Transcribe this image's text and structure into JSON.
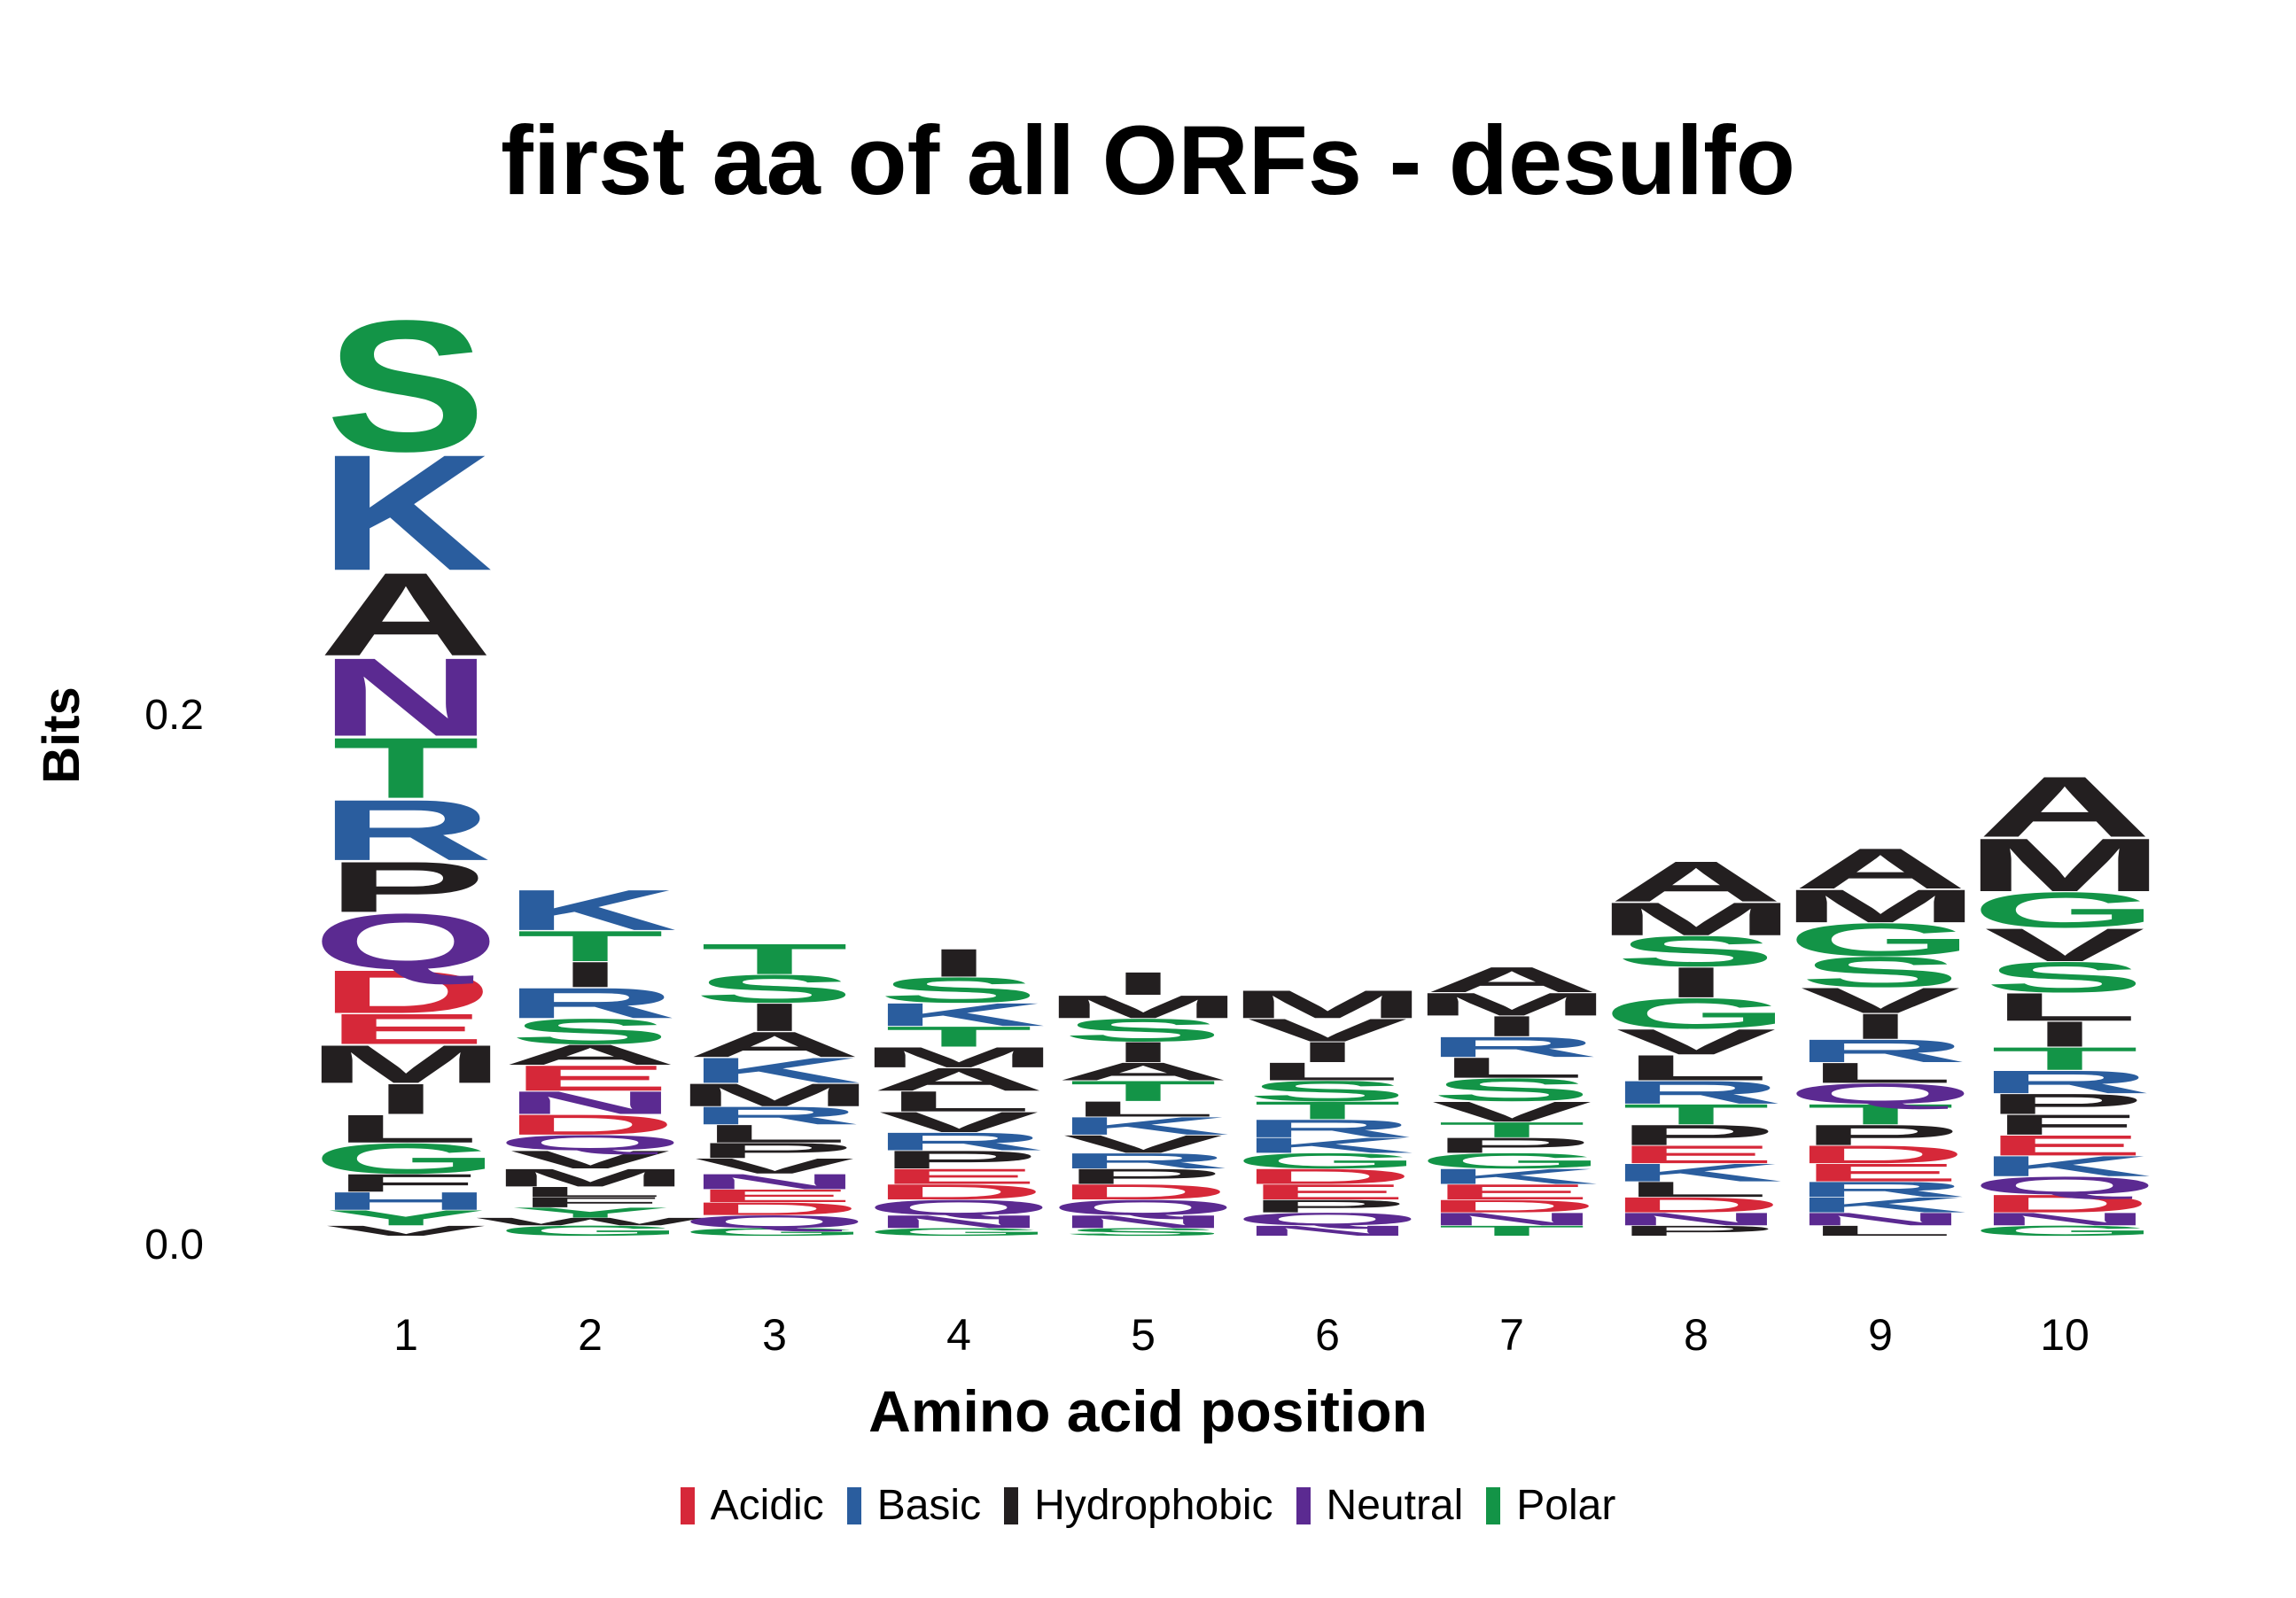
{
  "chart_data": {
    "type": "sequence-logo",
    "title": "first aa of all ORFs - desulfo",
    "xlabel": "Amino acid position",
    "ylabel": "Bits",
    "yticks": [
      "0.0",
      "0.2"
    ],
    "ylim": [
      0,
      0.2
    ],
    "legend_position": "bottom",
    "groups": [
      {
        "name": "Acidic",
        "color": "#d62839"
      },
      {
        "name": "Basic",
        "color": "#2a5d9e"
      },
      {
        "name": "Hydrophobic",
        "color": "#231f20"
      },
      {
        "name": "Neutral",
        "color": "#5b2a91"
      },
      {
        "name": "Polar",
        "color": "#139447"
      }
    ],
    "positions": [
      {
        "label": "1",
        "stack": [
          [
            "V",
            0.004
          ],
          [
            "Y",
            0.006
          ],
          [
            "H",
            0.007
          ],
          [
            "F",
            0.007
          ],
          [
            "G",
            0.012
          ],
          [
            "L",
            0.011
          ],
          [
            "I",
            0.012
          ],
          [
            "M",
            0.015
          ],
          [
            "E",
            0.012
          ],
          [
            "D",
            0.017
          ],
          [
            "Q",
            0.022
          ],
          [
            "P",
            0.02
          ],
          [
            "R",
            0.024
          ],
          [
            "T",
            0.024
          ],
          [
            "N",
            0.031
          ],
          [
            "A",
            0.033
          ],
          [
            "K",
            0.046
          ],
          [
            "S",
            0.052
          ]
        ]
      },
      {
        "label": "2",
        "stack": [
          [
            "G",
            0.004
          ],
          [
            "W",
            0.003
          ],
          [
            "Y",
            0.004
          ],
          [
            "F",
            0.004
          ],
          [
            "L",
            0.004
          ],
          [
            "M",
            0.007
          ],
          [
            "V",
            0.007
          ],
          [
            "Q",
            0.006
          ],
          [
            "D",
            0.008
          ],
          [
            "N",
            0.009
          ],
          [
            "E",
            0.01
          ],
          [
            "A",
            0.008
          ],
          [
            "S",
            0.01
          ],
          [
            "R",
            0.012
          ],
          [
            "I",
            0.01
          ],
          [
            "T",
            0.012
          ],
          [
            "K",
            0.016
          ]
        ]
      },
      {
        "label": "3",
        "stack": [
          [
            "G",
            0.003
          ],
          [
            "Q",
            0.005
          ],
          [
            "D",
            0.005
          ],
          [
            "E",
            0.005
          ],
          [
            "N",
            0.006
          ],
          [
            "V",
            0.006
          ],
          [
            "P",
            0.006
          ],
          [
            "L",
            0.007
          ],
          [
            "R",
            0.007
          ],
          [
            "M",
            0.009
          ],
          [
            "K",
            0.01
          ],
          [
            "A",
            0.01
          ],
          [
            "I",
            0.011
          ],
          [
            "S",
            0.011
          ],
          [
            "T",
            0.012
          ]
        ]
      },
      {
        "label": "4",
        "stack": [
          [
            "G",
            0.003
          ],
          [
            "N",
            0.005
          ],
          [
            "Q",
            0.006
          ],
          [
            "D",
            0.006
          ],
          [
            "E",
            0.006
          ],
          [
            "P",
            0.007
          ],
          [
            "R",
            0.007
          ],
          [
            "V",
            0.008
          ],
          [
            "L",
            0.008
          ],
          [
            "A",
            0.009
          ],
          [
            "M",
            0.008
          ],
          [
            "T",
            0.008
          ],
          [
            "K",
            0.009
          ],
          [
            "S",
            0.01
          ],
          [
            "I",
            0.011
          ]
        ]
      },
      {
        "label": "5",
        "stack": [
          [
            "S",
            0.003
          ],
          [
            "N",
            0.005
          ],
          [
            "Q",
            0.006
          ],
          [
            "D",
            0.006
          ],
          [
            "P",
            0.006
          ],
          [
            "R",
            0.006
          ],
          [
            "V",
            0.007
          ],
          [
            "K",
            0.007
          ],
          [
            "L",
            0.006
          ],
          [
            "T",
            0.008
          ],
          [
            "A",
            0.007
          ],
          [
            "I",
            0.008
          ],
          [
            "S",
            0.009
          ],
          [
            "M",
            0.009
          ],
          [
            "I",
            0.009
          ]
        ]
      },
      {
        "label": "6",
        "stack": [
          [
            "N",
            0.004
          ],
          [
            "Q",
            0.005
          ],
          [
            "P",
            0.005
          ],
          [
            "E",
            0.006
          ],
          [
            "D",
            0.006
          ],
          [
            "G",
            0.006
          ],
          [
            "K",
            0.006
          ],
          [
            "R",
            0.007
          ],
          [
            "T",
            0.007
          ],
          [
            "S",
            0.008
          ],
          [
            "L",
            0.007
          ],
          [
            "I",
            0.008
          ],
          [
            "V",
            0.009
          ],
          [
            "M",
            0.011
          ]
        ]
      },
      {
        "label": "7",
        "stack": [
          [
            "T",
            0.004
          ],
          [
            "N",
            0.005
          ],
          [
            "D",
            0.005
          ],
          [
            "E",
            0.006
          ],
          [
            "K",
            0.006
          ],
          [
            "G",
            0.006
          ],
          [
            "P",
            0.006
          ],
          [
            "T",
            0.006
          ],
          [
            "V",
            0.008
          ],
          [
            "S",
            0.009
          ],
          [
            "L",
            0.008
          ],
          [
            "R",
            0.008
          ],
          [
            "I",
            0.008
          ],
          [
            "M",
            0.009
          ],
          [
            "A",
            0.01
          ]
        ]
      },
      {
        "label": "8",
        "stack": [
          [
            "P",
            0.004
          ],
          [
            "N",
            0.005
          ],
          [
            "D",
            0.006
          ],
          [
            "L",
            0.006
          ],
          [
            "K",
            0.007
          ],
          [
            "E",
            0.007
          ],
          [
            "P",
            0.008
          ],
          [
            "T",
            0.008
          ],
          [
            "R",
            0.009
          ],
          [
            "L",
            0.01
          ],
          [
            "V",
            0.01
          ],
          [
            "G",
            0.012
          ],
          [
            "I",
            0.012
          ],
          [
            "S",
            0.012
          ],
          [
            "M",
            0.013
          ],
          [
            "A",
            0.016
          ]
        ]
      },
      {
        "label": "9",
        "stack": [
          [
            "L",
            0.004
          ],
          [
            "N",
            0.005
          ],
          [
            "K",
            0.006
          ],
          [
            "R",
            0.006
          ],
          [
            "E",
            0.007
          ],
          [
            "D",
            0.007
          ],
          [
            "P",
            0.008
          ],
          [
            "T",
            0.008
          ],
          [
            "Q",
            0.008
          ],
          [
            "L",
            0.008
          ],
          [
            "R",
            0.009
          ],
          [
            "I",
            0.01
          ],
          [
            "V",
            0.01
          ],
          [
            "S",
            0.012
          ],
          [
            "G",
            0.013
          ],
          [
            "M",
            0.013
          ],
          [
            "A",
            0.016
          ]
        ]
      },
      {
        "label": "10",
        "stack": [
          [
            "G",
            0.004
          ],
          [
            "N",
            0.005
          ],
          [
            "D",
            0.007
          ],
          [
            "Q",
            0.007
          ],
          [
            "K",
            0.008
          ],
          [
            "E",
            0.008
          ],
          [
            "F",
            0.008
          ],
          [
            "P",
            0.008
          ],
          [
            "R",
            0.009
          ],
          [
            "T",
            0.009
          ],
          [
            "I",
            0.01
          ],
          [
            "L",
            0.011
          ],
          [
            "S",
            0.012
          ],
          [
            "V",
            0.013
          ],
          [
            "G",
            0.014
          ],
          [
            "M",
            0.021
          ],
          [
            "A",
            0.024
          ]
        ]
      }
    ]
  }
}
